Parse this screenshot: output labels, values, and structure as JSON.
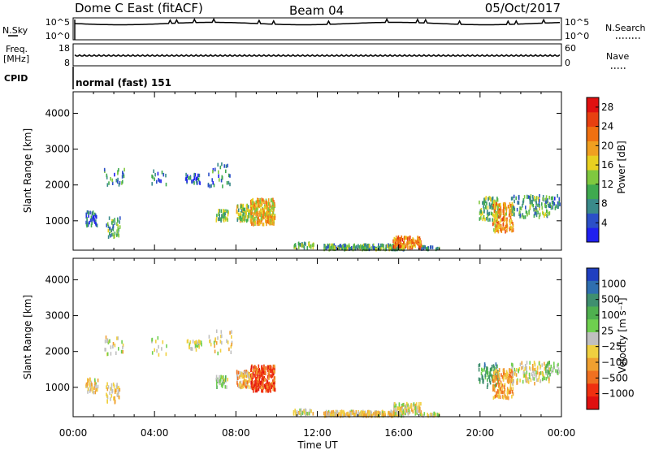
{
  "header": {
    "title": "Dome C East (fitACF)",
    "beam": "Beam 04",
    "date": "05/Oct/2017"
  },
  "top_panels": {
    "nsky_label": "N.Sky",
    "nsky_top_tick": "10^5",
    "nsky_bottom_tick": "10^0",
    "nsearch_label": "N.Search",
    "nsearch_top_tick": "10^5",
    "nsearch_bottom_tick": "10^0",
    "freq_label_line1": "Freq.",
    "freq_label_line2": "[MHz]",
    "freq_top_tick": "18",
    "freq_bottom_tick": "8",
    "nave_label": "Nave",
    "nave_top_tick": "60",
    "nave_bottom_tick": "0",
    "cpid_label": "CPID",
    "cpid_value": "normal (fast) 151"
  },
  "axes": {
    "ylabel": "Slant Range [km]",
    "xlabel": "Time UT",
    "x_ticks": [
      "00:00",
      "04:00",
      "08:00",
      "12:00",
      "16:00",
      "20:00",
      "00:00"
    ],
    "y_ticks": [
      "1000",
      "2000",
      "3000",
      "4000"
    ]
  },
  "power_colorbar": {
    "label": "Power [dB]",
    "ticks": [
      "4",
      "8",
      "12",
      "16",
      "20",
      "24",
      "28"
    ],
    "colors": [
      "#1f1ff0",
      "#2b4fc8",
      "#3a8a8a",
      "#3faa4f",
      "#7fc83f",
      "#e8d020",
      "#f0a020",
      "#f07010",
      "#e84010",
      "#e01010"
    ]
  },
  "velocity_colorbar": {
    "label": "Velocity [m s⁻¹]",
    "ticks": [
      "1000",
      "500",
      "100",
      "25",
      "−25",
      "−100",
      "−500",
      "−1000"
    ],
    "colors": [
      "#1f3fc0",
      "#2f6fb0",
      "#3f8f6f",
      "#4fb04f",
      "#6fd04f",
      "#c0c0c0",
      "#f0d040",
      "#f0a030",
      "#f07020",
      "#f03010",
      "#e01010"
    ]
  },
  "chart_data": [
    {
      "type": "heatmap",
      "panel": "power",
      "x_unit": "hours UT",
      "y_unit": "km",
      "xlim": [
        0,
        24
      ],
      "ylim": [
        180,
        4600
      ],
      "clim": [
        0,
        30
      ],
      "cells": [
        {
          "t0": 0.6,
          "t1": 1.2,
          "r0": 850,
          "r1": 1250,
          "v": 6,
          "n": 40
        },
        {
          "t0": 1.6,
          "t1": 2.3,
          "r0": 550,
          "r1": 1100,
          "v": 10,
          "n": 40
        },
        {
          "t0": 1.5,
          "t1": 2.5,
          "r0": 1900,
          "r1": 2450,
          "v": 8,
          "n": 25
        },
        {
          "t0": 3.8,
          "t1": 4.6,
          "r0": 1900,
          "r1": 2400,
          "v": 6,
          "n": 15
        },
        {
          "t0": 5.5,
          "t1": 6.3,
          "r0": 2050,
          "r1": 2300,
          "v": 5,
          "n": 30
        },
        {
          "t0": 6.6,
          "t1": 7.8,
          "r0": 1950,
          "r1": 2600,
          "v": 8,
          "n": 30
        },
        {
          "t0": 7.0,
          "t1": 7.6,
          "r0": 1000,
          "r1": 1300,
          "v": 12,
          "n": 40
        },
        {
          "t0": 8.0,
          "t1": 8.8,
          "r0": 1000,
          "r1": 1450,
          "v": 14,
          "n": 90
        },
        {
          "t0": 8.7,
          "t1": 9.9,
          "r0": 900,
          "r1": 1600,
          "v": 18,
          "n": 260
        },
        {
          "t0": 10.8,
          "t1": 11.8,
          "r0": 250,
          "r1": 380,
          "v": 12,
          "n": 35
        },
        {
          "t0": 12.3,
          "t1": 16.3,
          "r0": 200,
          "r1": 330,
          "v": 10,
          "n": 220
        },
        {
          "t0": 15.7,
          "t1": 17.1,
          "r0": 250,
          "r1": 550,
          "v": 22,
          "n": 120
        },
        {
          "t0": 17.1,
          "t1": 18.0,
          "r0": 200,
          "r1": 280,
          "v": 8,
          "n": 20
        },
        {
          "t0": 19.9,
          "t1": 20.9,
          "r0": 1000,
          "r1": 1650,
          "v": 12,
          "n": 80
        },
        {
          "t0": 20.6,
          "t1": 21.6,
          "r0": 700,
          "r1": 1500,
          "v": 20,
          "n": 150
        },
        {
          "t0": 21.5,
          "t1": 23.4,
          "r0": 1100,
          "r1": 1700,
          "v": 10,
          "n": 120
        },
        {
          "t0": 23.2,
          "t1": 23.9,
          "r0": 1350,
          "r1": 1700,
          "v": 8,
          "n": 30
        }
      ]
    },
    {
      "type": "heatmap",
      "panel": "velocity",
      "x_unit": "hours UT",
      "y_unit": "km",
      "xlim": [
        0,
        24
      ],
      "ylim": [
        180,
        4600
      ],
      "clim": [
        -1100,
        1100
      ],
      "cells": [
        {
          "t0": 0.6,
          "t1": 1.2,
          "r0": 850,
          "r1": 1250,
          "v": -150,
          "n": 40
        },
        {
          "t0": 1.6,
          "t1": 2.3,
          "r0": 550,
          "r1": 1100,
          "v": -200,
          "n": 40
        },
        {
          "t0": 1.5,
          "t1": 2.5,
          "r0": 1900,
          "r1": 2450,
          "v": -80,
          "n": 25
        },
        {
          "t0": 3.8,
          "t1": 4.6,
          "r0": 1900,
          "r1": 2400,
          "v": 20,
          "n": 15
        },
        {
          "t0": 5.5,
          "t1": 6.3,
          "r0": 2050,
          "r1": 2300,
          "v": 0,
          "n": 30
        },
        {
          "t0": 6.6,
          "t1": 7.8,
          "r0": 1950,
          "r1": 2600,
          "v": -120,
          "n": 30
        },
        {
          "t0": 7.0,
          "t1": 7.6,
          "r0": 1000,
          "r1": 1300,
          "v": 150,
          "n": 40
        },
        {
          "t0": 8.0,
          "t1": 8.8,
          "r0": 1000,
          "r1": 1450,
          "v": -300,
          "n": 90
        },
        {
          "t0": 8.7,
          "t1": 9.9,
          "r0": 900,
          "r1": 1600,
          "v": -700,
          "n": 260
        },
        {
          "t0": 10.8,
          "t1": 11.8,
          "r0": 250,
          "r1": 380,
          "v": -150,
          "n": 35
        },
        {
          "t0": 12.3,
          "t1": 16.3,
          "r0": 200,
          "r1": 330,
          "v": -150,
          "n": 220
        },
        {
          "t0": 15.7,
          "t1": 17.1,
          "r0": 250,
          "r1": 550,
          "v": -80,
          "n": 120
        },
        {
          "t0": 17.1,
          "t1": 18.0,
          "r0": 200,
          "r1": 280,
          "v": 60,
          "n": 20
        },
        {
          "t0": 19.9,
          "t1": 20.9,
          "r0": 1000,
          "r1": 1650,
          "v": 500,
          "n": 80
        },
        {
          "t0": 20.6,
          "t1": 21.6,
          "r0": 700,
          "r1": 1500,
          "v": -400,
          "n": 150
        },
        {
          "t0": 21.5,
          "t1": 23.4,
          "r0": 1100,
          "r1": 1700,
          "v": -100,
          "n": 120
        },
        {
          "t0": 23.2,
          "t1": 23.9,
          "r0": 1350,
          "r1": 1700,
          "v": 200,
          "n": 30
        }
      ]
    }
  ]
}
